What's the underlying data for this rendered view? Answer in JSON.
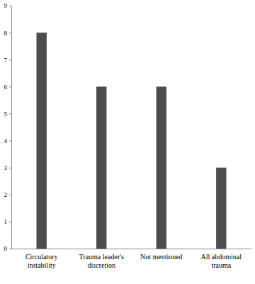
{
  "chart_data": {
    "type": "bar",
    "categories": [
      "Circulatory instability",
      "Trauma leader's discretion",
      "Not mentioned",
      "All abdominal trauma"
    ],
    "values": [
      8,
      6,
      6,
      3
    ],
    "color": "#4d4d4d",
    "ylim": [
      0,
      9
    ],
    "yticks": [
      0,
      1,
      2,
      3,
      4,
      5,
      6,
      7,
      8,
      9
    ],
    "grid": false
  }
}
